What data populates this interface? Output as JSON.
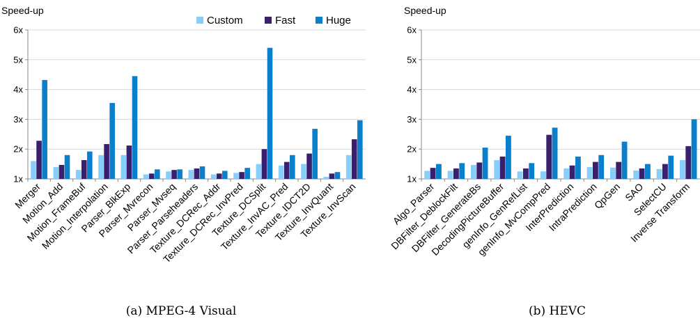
{
  "colors": {
    "custom": "#87cefa",
    "fast": "#3a1f6e",
    "huge": "#0a7fcc",
    "axis": "#888888",
    "grid": "#d9d9d9"
  },
  "chart_data": [
    {
      "type": "bar",
      "title": "",
      "ylabel": "Speed-up",
      "ylim": [
        1,
        6
      ],
      "yticks": [
        "1x",
        "2x",
        "3x",
        "4x",
        "5x",
        "6x"
      ],
      "caption": "(a) MPEG-4 Visual",
      "legend": "top-right",
      "grid": true,
      "categories": [
        "Merger",
        "Motion_Add",
        "Motion_FrameBuf",
        "Motion_Interpolation",
        "Parser_BlkExp",
        "Parser_Mvrecon",
        "Parser_Mvseq",
        "Parser_Parseheaders",
        "Texture_DCRec_Addr",
        "Texture_DCRec_InvPred",
        "Texture_DCSplit",
        "Texture_InvAC_Pred",
        "Texture_IDCT2D",
        "Texture_InvQuant",
        "Texture_InvScan"
      ],
      "series": [
        {
          "name": "Custom",
          "color": "#87cefa",
          "values": [
            1.6,
            1.4,
            1.3,
            1.8,
            1.8,
            1.15,
            1.25,
            1.3,
            1.15,
            1.2,
            1.5,
            1.45,
            1.5,
            1.07,
            1.8
          ]
        },
        {
          "name": "Fast",
          "color": "#3a1f6e",
          "values": [
            2.28,
            1.47,
            1.63,
            2.17,
            2.12,
            1.18,
            1.3,
            1.35,
            1.18,
            1.23,
            2.0,
            1.57,
            1.85,
            1.18,
            2.33
          ]
        },
        {
          "name": "Huge",
          "color": "#0a7fcc",
          "values": [
            4.32,
            1.8,
            1.92,
            3.55,
            4.45,
            1.32,
            1.32,
            1.42,
            1.27,
            1.37,
            5.4,
            1.8,
            2.68,
            1.23,
            2.97
          ]
        }
      ]
    },
    {
      "type": "bar",
      "title": "",
      "ylabel": "Speed-up",
      "ylim": [
        1,
        6
      ],
      "yticks": [
        "1x",
        "2x",
        "3x",
        "4x",
        "5x",
        "6x"
      ],
      "caption": "(b) HEVC",
      "grid": true,
      "categories": [
        "Algo_Parser",
        "DBFilter_DeblockFilt",
        "DBFilter_GenerateBs",
        "DecodingPictureBuffer",
        "genInfo_GenRefList",
        "genInfo_MvCompPred",
        "InterPrediction",
        "IntraPrediction",
        "QpGen",
        "SAO",
        "SelectCU",
        "Inverse Transform"
      ],
      "series": [
        {
          "name": "Custom",
          "color": "#87cefa",
          "values": [
            1.27,
            1.27,
            1.47,
            1.63,
            1.25,
            1.25,
            1.35,
            1.4,
            1.38,
            1.28,
            1.33,
            1.63
          ]
        },
        {
          "name": "Fast",
          "color": "#3a1f6e",
          "values": [
            1.37,
            1.35,
            1.55,
            1.75,
            1.35,
            2.48,
            1.45,
            1.57,
            1.57,
            1.35,
            1.5,
            2.1
          ]
        },
        {
          "name": "Huge",
          "color": "#0a7fcc",
          "values": [
            1.5,
            1.53,
            2.05,
            2.45,
            1.53,
            2.72,
            1.75,
            1.8,
            2.25,
            1.5,
            1.78,
            3.0
          ]
        }
      ]
    }
  ]
}
